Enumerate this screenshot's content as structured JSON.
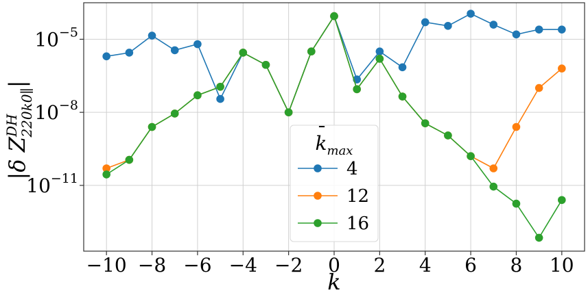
{
  "chart_data": {
    "type": "line",
    "xlabel": "k",
    "ylabel": "|δ Z^{DH}_{220k0∥}|",
    "ylabel_parts": {
      "base": "|δ Z",
      "sup": "DH",
      "sub": "220k0∥",
      "end": "|"
    },
    "yscale": "log",
    "xlim": [
      -11,
      11
    ],
    "ylim_log10": [
      -13.7,
      -3.5
    ],
    "x_ticks": [
      -10,
      -8,
      -6,
      -4,
      -2,
      0,
      2,
      4,
      6,
      8,
      10
    ],
    "x_tick_labels": [
      "−10",
      "−8",
      "−6",
      "−4",
      "−2",
      "0",
      "2",
      "4",
      "6",
      "8",
      "10"
    ],
    "y_ticks_log10": [
      -5,
      -8,
      -11
    ],
    "y_tick_labels": [
      {
        "base": "10",
        "exp": "−5"
      },
      {
        "base": "10",
        "exp": "−8"
      },
      {
        "base": "10",
        "exp": "−11"
      }
    ],
    "grid": true,
    "legend": {
      "title_base": "k",
      "title_sub": "max",
      "placement": "lower-center"
    },
    "series": [
      {
        "name": "4",
        "color": "#1f77b4",
        "x": [
          -10,
          -9,
          -8,
          -7,
          -6,
          -5,
          -4,
          -3,
          -2,
          -1,
          0,
          1,
          2,
          3,
          4,
          5,
          6,
          7,
          8,
          9,
          10
        ],
        "y_log10": [
          -5.7,
          -5.55,
          -4.85,
          -5.45,
          -5.2,
          -7.45,
          -5.55,
          -6.05,
          -8.0,
          -5.5,
          -4.05,
          -6.65,
          -5.5,
          -6.15,
          -4.3,
          -4.45,
          -3.95,
          -4.4,
          -4.8,
          -4.6,
          -4.6
        ]
      },
      {
        "name": "12",
        "color": "#ff7f0e",
        "x": [
          -10,
          -9,
          -8,
          -7,
          -6,
          -5,
          -4,
          -3,
          -2,
          -1,
          0,
          1,
          2,
          3,
          4,
          5,
          6,
          7,
          8,
          9,
          10
        ],
        "y_log10": [
          -10.3,
          -9.95,
          -8.6,
          -8.05,
          -7.3,
          -6.95,
          -5.55,
          -6.05,
          -8.0,
          -5.5,
          -4.05,
          -7.05,
          -5.8,
          -7.35,
          -8.45,
          -8.95,
          -9.8,
          -10.3,
          -8.6,
          -7.0,
          -6.2
        ]
      },
      {
        "name": "16",
        "color": "#2ca02c",
        "x": [
          -10,
          -9,
          -8,
          -7,
          -6,
          -5,
          -4,
          -3,
          -2,
          -1,
          0,
          1,
          2,
          3,
          4,
          5,
          6,
          7,
          8,
          9,
          10
        ],
        "y_log10": [
          -10.55,
          -9.95,
          -8.6,
          -8.05,
          -7.3,
          -6.95,
          -5.55,
          -6.05,
          -8.0,
          -5.5,
          -4.05,
          -7.05,
          -5.8,
          -7.35,
          -8.45,
          -8.95,
          -9.8,
          -11.05,
          -11.75,
          -13.15,
          -11.6
        ]
      }
    ]
  }
}
